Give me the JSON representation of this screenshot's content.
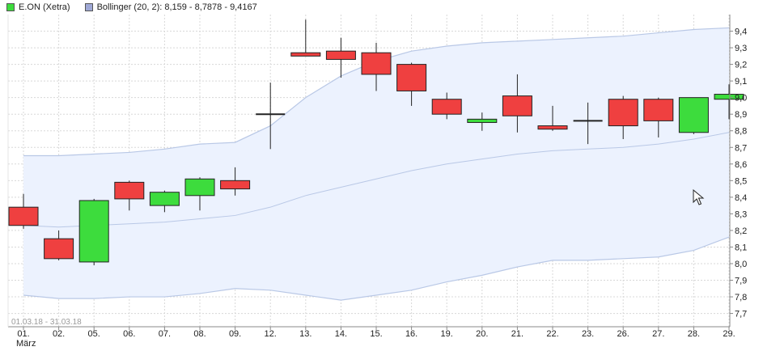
{
  "legend": {
    "series": {
      "label": "E.ON (Xetra)",
      "up_color": "#3ddc3d",
      "down_color": "#ef4040"
    },
    "bollinger": {
      "label": "Bollinger (20, 2): 8,159 - 8,7878 - 9,4167",
      "color": "#9fa8d6"
    }
  },
  "range_label": "01.03.18 - 31.03.18",
  "month_label": "März",
  "colors": {
    "band_fill": "#ecf2fe",
    "band_line": "#b9c8e6",
    "grid": "#d8d8d8",
    "axis": "#888888"
  },
  "chart_data": {
    "type": "candlestick",
    "categories": [
      "01.",
      "02.",
      "05.",
      "06.",
      "07.",
      "08.",
      "09.",
      "12.",
      "13.",
      "14.",
      "15.",
      "16.",
      "19.",
      "20.",
      "21.",
      "22.",
      "23.",
      "26.",
      "27.",
      "28.",
      "29."
    ],
    "open": [
      8.34,
      8.15,
      8.01,
      8.49,
      8.35,
      8.41,
      8.5,
      8.9,
      9.27,
      9.28,
      9.27,
      9.2,
      8.99,
      8.85,
      9.01,
      8.83,
      8.86,
      8.99,
      8.99,
      8.79,
      8.99
    ],
    "high": [
      8.42,
      8.2,
      8.39,
      8.5,
      8.44,
      8.52,
      8.58,
      9.09,
      9.47,
      9.36,
      9.33,
      9.21,
      9.03,
      8.91,
      9.14,
      8.95,
      8.97,
      9.01,
      9.0,
      9.0,
      9.08
    ],
    "low": [
      8.21,
      8.02,
      7.99,
      8.32,
      8.31,
      8.32,
      8.41,
      8.69,
      9.25,
      9.12,
      9.04,
      8.95,
      8.87,
      8.8,
      8.79,
      8.8,
      8.72,
      8.75,
      8.76,
      8.78,
      8.87
    ],
    "close": [
      8.23,
      8.03,
      8.38,
      8.39,
      8.43,
      8.51,
      8.45,
      8.9,
      9.25,
      9.23,
      9.14,
      9.04,
      8.9,
      8.87,
      8.89,
      8.81,
      8.86,
      8.83,
      8.86,
      9.0,
      9.02
    ],
    "bollinger_upper": [
      8.65,
      8.65,
      8.66,
      8.67,
      8.69,
      8.72,
      8.73,
      8.83,
      9.0,
      9.13,
      9.22,
      9.28,
      9.31,
      9.33,
      9.34,
      9.35,
      9.36,
      9.37,
      9.39,
      9.41,
      9.42
    ],
    "bollinger_middle": [
      8.23,
      8.22,
      8.23,
      8.24,
      8.25,
      8.27,
      8.29,
      8.34,
      8.41,
      8.46,
      8.51,
      8.56,
      8.6,
      8.63,
      8.66,
      8.68,
      8.69,
      8.7,
      8.72,
      8.75,
      8.79
    ],
    "bollinger_lower": [
      7.81,
      7.79,
      7.79,
      7.8,
      7.8,
      7.82,
      7.85,
      7.84,
      7.81,
      7.78,
      7.81,
      7.84,
      7.89,
      7.93,
      7.98,
      8.02,
      8.02,
      8.03,
      8.04,
      8.08,
      8.16
    ],
    "ylim": [
      7.62,
      9.5
    ],
    "yticks": [
      7.7,
      7.8,
      7.9,
      8.0,
      8.1,
      8.2,
      8.3,
      8.4,
      8.5,
      8.6,
      8.7,
      8.8,
      8.9,
      9.0,
      9.1,
      9.2,
      9.3,
      9.4
    ],
    "ytick_labels": [
      "7,7",
      "7,8",
      "7,9",
      "8,0",
      "8,1",
      "8,2",
      "8,3",
      "8,4",
      "8,5",
      "8,6",
      "8,7",
      "8,8",
      "8,9",
      "9,0",
      "9,1",
      "9,2",
      "9,3",
      "9,4"
    ],
    "grid": true,
    "legend_position": "top-left",
    "y_axis_side": "right"
  }
}
